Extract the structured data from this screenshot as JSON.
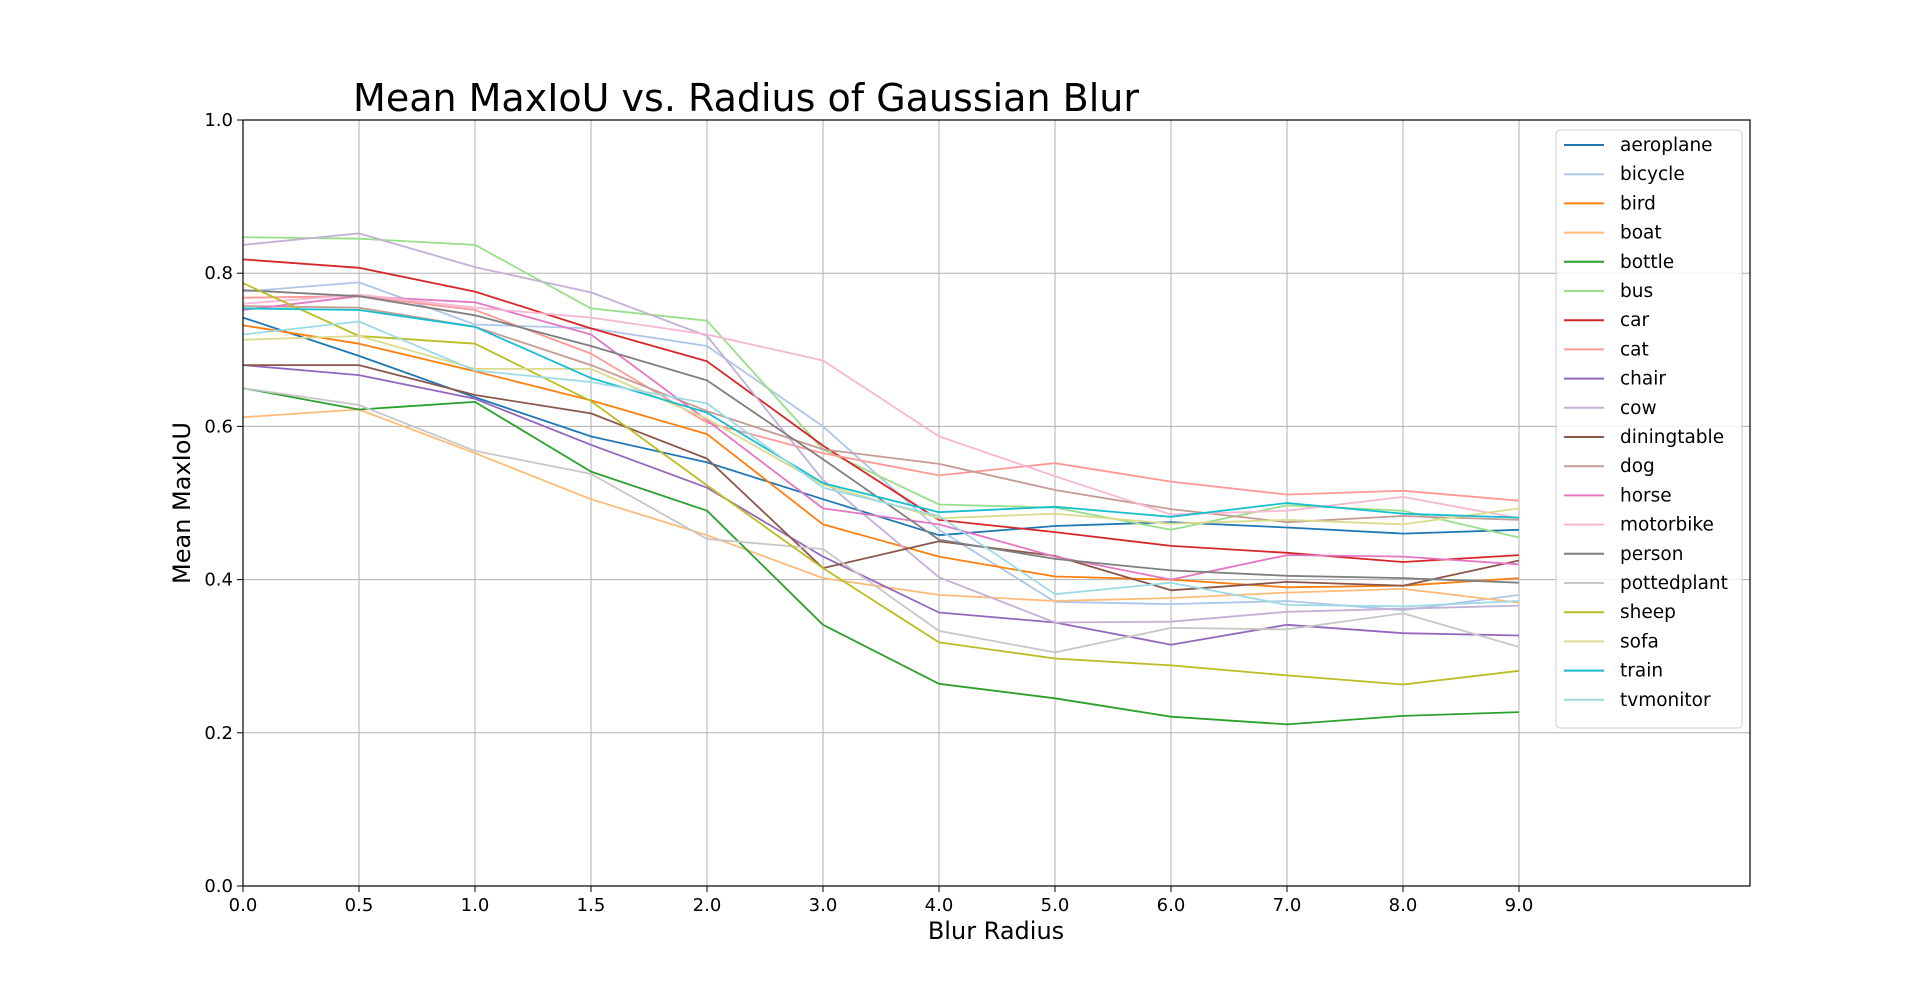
{
  "chart_data": {
    "type": "line",
    "title": "Mean MaxIoU vs. Radius of Gaussian Blur",
    "xlabel": "Blur Radius",
    "ylabel": "Mean MaxIoU",
    "x_tick_labels": [
      "0.0",
      "0.5",
      "1.0",
      "1.5",
      "2.0",
      "3.0",
      "4.0",
      "5.0",
      "6.0",
      "7.0",
      "8.0",
      "9.0"
    ],
    "y_tick_labels": [
      "0.0",
      "0.2",
      "0.4",
      "0.6",
      "0.8",
      "1.0"
    ],
    "ylim": [
      0,
      1
    ],
    "grid": true,
    "legend_position": "upper right",
    "series": [
      {
        "name": "aeroplane",
        "color": "#1f77b4",
        "values": [
          0.742,
          0.692,
          0.638,
          0.587,
          0.553,
          0.505,
          0.458,
          0.47,
          0.475,
          0.468,
          0.46,
          0.465
        ]
      },
      {
        "name": "bicycle",
        "color": "#aec7e8",
        "values": [
          0.776,
          0.788,
          0.733,
          0.728,
          0.705,
          0.6,
          0.465,
          0.371,
          0.368,
          0.372,
          0.36,
          0.38
        ]
      },
      {
        "name": "bird",
        "color": "#ff7f0e",
        "values": [
          0.732,
          0.708,
          0.672,
          0.634,
          0.59,
          0.472,
          0.43,
          0.404,
          0.4,
          0.39,
          0.392,
          0.402
        ]
      },
      {
        "name": "boat",
        "color": "#ffbb78",
        "values": [
          0.612,
          0.622,
          0.565,
          0.505,
          0.458,
          0.402,
          0.38,
          0.372,
          0.376,
          0.383,
          0.388,
          0.37
        ]
      },
      {
        "name": "bottle",
        "color": "#2ca02c",
        "values": [
          0.65,
          0.622,
          0.632,
          0.541,
          0.49,
          0.341,
          0.264,
          0.245,
          0.221,
          0.211,
          0.222,
          0.227
        ]
      },
      {
        "name": "bus",
        "color": "#98df8a",
        "values": [
          0.847,
          0.845,
          0.837,
          0.754,
          0.738,
          0.57,
          0.498,
          0.494,
          0.465,
          0.497,
          0.49,
          0.455
        ]
      },
      {
        "name": "car",
        "color": "#d62728",
        "values": [
          0.818,
          0.807,
          0.776,
          0.728,
          0.685,
          0.575,
          0.478,
          0.462,
          0.444,
          0.435,
          0.423,
          0.432
        ]
      },
      {
        "name": "cat",
        "color": "#ff9896",
        "values": [
          0.768,
          0.77,
          0.752,
          0.695,
          0.605,
          0.565,
          0.536,
          0.552,
          0.528,
          0.511,
          0.516,
          0.503
        ]
      },
      {
        "name": "chair",
        "color": "#9467bd",
        "values": [
          0.68,
          0.667,
          0.636,
          0.576,
          0.52,
          0.43,
          0.357,
          0.344,
          0.315,
          0.341,
          0.33,
          0.327
        ]
      },
      {
        "name": "cow",
        "color": "#c5b0d5",
        "values": [
          0.837,
          0.852,
          0.808,
          0.775,
          0.718,
          0.53,
          0.403,
          0.344,
          0.345,
          0.358,
          0.362,
          0.366
        ]
      },
      {
        "name": "diningtable",
        "color": "#8c564b",
        "values": [
          0.68,
          0.68,
          0.641,
          0.617,
          0.558,
          0.415,
          0.45,
          0.431,
          0.386,
          0.397,
          0.392,
          0.425
        ]
      },
      {
        "name": "dog",
        "color": "#c49c94",
        "values": [
          0.757,
          0.755,
          0.73,
          0.68,
          0.62,
          0.57,
          0.551,
          0.517,
          0.492,
          0.475,
          0.483,
          0.478
        ]
      },
      {
        "name": "horse",
        "color": "#e377c2",
        "values": [
          0.752,
          0.77,
          0.762,
          0.72,
          0.608,
          0.493,
          0.472,
          0.43,
          0.4,
          0.432,
          0.43,
          0.42
        ]
      },
      {
        "name": "motorbike",
        "color": "#f7b6d2",
        "values": [
          0.76,
          0.772,
          0.755,
          0.742,
          0.72,
          0.686,
          0.587,
          0.535,
          0.485,
          0.49,
          0.508,
          0.48
        ]
      },
      {
        "name": "person",
        "color": "#7f7f7f",
        "values": [
          0.778,
          0.77,
          0.745,
          0.705,
          0.66,
          0.557,
          0.452,
          0.427,
          0.412,
          0.405,
          0.402,
          0.396
        ]
      },
      {
        "name": "pottedplant",
        "color": "#c7c7c7",
        "values": [
          0.65,
          0.628,
          0.568,
          0.538,
          0.453,
          0.44,
          0.333,
          0.305,
          0.337,
          0.335,
          0.356,
          0.312
        ]
      },
      {
        "name": "sheep",
        "color": "#bcbd22",
        "values": [
          0.787,
          0.718,
          0.708,
          0.633,
          0.523,
          0.415,
          0.318,
          0.297,
          0.288,
          0.275,
          0.263,
          0.281
        ]
      },
      {
        "name": "sofa",
        "color": "#dbdb8d",
        "values": [
          0.713,
          0.718,
          0.675,
          0.675,
          0.61,
          0.524,
          0.48,
          0.486,
          0.473,
          0.478,
          0.472,
          0.493
        ]
      },
      {
        "name": "train",
        "color": "#17becf",
        "values": [
          0.754,
          0.752,
          0.73,
          0.663,
          0.618,
          0.526,
          0.488,
          0.495,
          0.482,
          0.5,
          0.486,
          0.481
        ]
      },
      {
        "name": "tvmonitor",
        "color": "#9edae5",
        "values": [
          0.72,
          0.737,
          0.673,
          0.658,
          0.63,
          0.52,
          0.483,
          0.381,
          0.396,
          0.367,
          0.365,
          0.372
        ]
      }
    ]
  }
}
